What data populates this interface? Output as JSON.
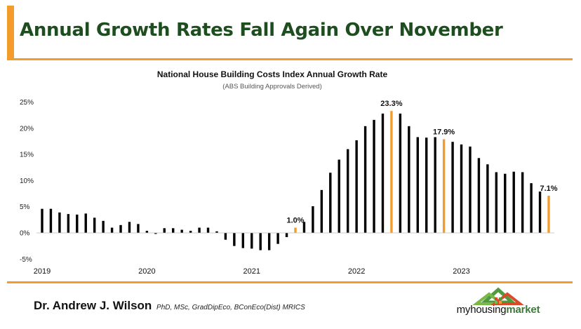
{
  "header": {
    "title": "Annual Growth Rates Fall Again Over November"
  },
  "footer": {
    "author_name": "Dr. Andrew J. Wilson",
    "author_credentials": "PhD, MSc, GradDipEco, BConEco(Dist) MRICS",
    "logo_text_a": "myhousing",
    "logo_text_b": "market"
  },
  "colors": {
    "accent": "#f39c2c",
    "title": "#1e4d1f",
    "bar": "#000000",
    "highlight_bar": "#f39c2c"
  },
  "chart_data": {
    "type": "bar",
    "title": "National House Building Costs Index Annual Growth Rate",
    "subtitle": "(ABS Building Approvals Derived)",
    "xlabel": "",
    "ylabel": "",
    "ylim": [
      -5,
      25
    ],
    "ytick_labels": [
      "25%",
      "20%",
      "15%",
      "10%",
      "5%",
      "0%",
      "-5%"
    ],
    "year_labels": [
      "2019",
      "2020",
      "2021",
      "2022",
      "2023"
    ],
    "grid": false,
    "values": [
      4.6,
      4.6,
      3.9,
      3.6,
      3.5,
      3.7,
      2.9,
      2.3,
      1.0,
      1.5,
      2.1,
      1.7,
      0.4,
      -0.2,
      0.9,
      0.9,
      0.6,
      0.4,
      1.0,
      1.0,
      0.3,
      -1.3,
      -2.5,
      -2.9,
      -3.0,
      -3.3,
      -3.3,
      -2.1,
      -0.8,
      1.0,
      2.1,
      5.1,
      8.2,
      11.5,
      14.0,
      16.0,
      17.7,
      20.4,
      21.6,
      22.8,
      23.3,
      22.8,
      20.4,
      18.3,
      18.2,
      18.3,
      17.9,
      17.4,
      16.9,
      16.5,
      14.3,
      13.1,
      11.6,
      11.3,
      11.7,
      11.6,
      9.5,
      7.9,
      7.1
    ],
    "highlights": [
      {
        "index": 29,
        "label": "1.0%"
      },
      {
        "index": 40,
        "label": "23.3%"
      },
      {
        "index": 46,
        "label": "17.9%"
      },
      {
        "index": 58,
        "label": "7.1%"
      }
    ]
  }
}
